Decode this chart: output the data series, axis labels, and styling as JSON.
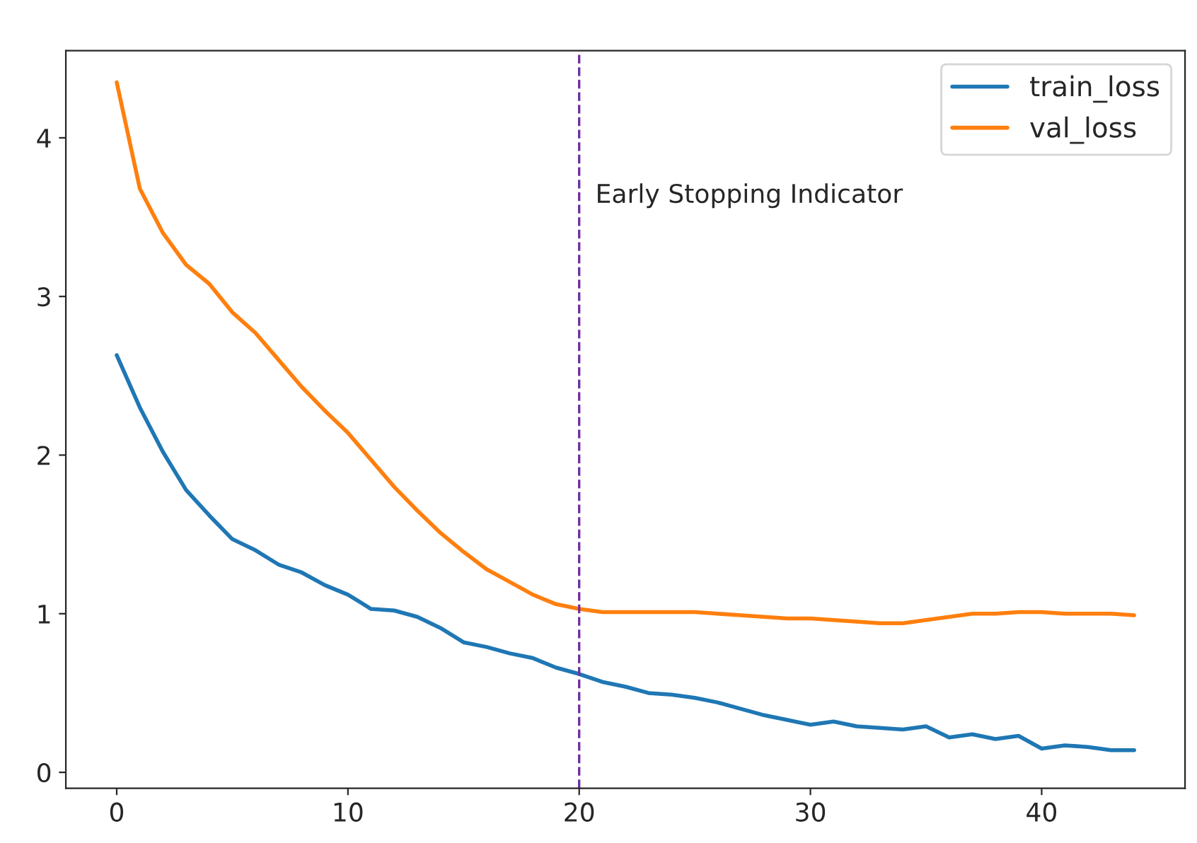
{
  "chart_data": {
    "type": "line",
    "x": [
      0,
      1,
      2,
      3,
      4,
      5,
      6,
      7,
      8,
      9,
      10,
      11,
      12,
      13,
      14,
      15,
      16,
      17,
      18,
      19,
      20,
      21,
      22,
      23,
      24,
      25,
      26,
      27,
      28,
      29,
      30,
      31,
      32,
      33,
      34,
      35,
      36,
      37,
      38,
      39,
      40,
      41,
      42,
      43,
      44
    ],
    "series": [
      {
        "name": "train_loss",
        "color": "#1f77b4",
        "values": [
          2.63,
          2.3,
          2.02,
          1.78,
          1.62,
          1.47,
          1.4,
          1.31,
          1.26,
          1.18,
          1.12,
          1.03,
          1.02,
          0.98,
          0.91,
          0.82,
          0.79,
          0.75,
          0.72,
          0.66,
          0.62,
          0.57,
          0.54,
          0.5,
          0.49,
          0.47,
          0.44,
          0.4,
          0.36,
          0.33,
          0.3,
          0.32,
          0.29,
          0.28,
          0.27,
          0.29,
          0.22,
          0.24,
          0.21,
          0.23,
          0.15,
          0.17,
          0.16,
          0.14,
          0.14
        ]
      },
      {
        "name": "val_loss",
        "color": "#ff7f0e",
        "values": [
          4.35,
          3.68,
          3.4,
          3.2,
          3.08,
          2.9,
          2.77,
          2.6,
          2.43,
          2.28,
          2.14,
          1.97,
          1.8,
          1.65,
          1.51,
          1.39,
          1.28,
          1.2,
          1.12,
          1.06,
          1.03,
          1.01,
          1.01,
          1.01,
          1.01,
          1.01,
          1.0,
          0.99,
          0.98,
          0.97,
          0.97,
          0.96,
          0.95,
          0.94,
          0.94,
          0.96,
          0.98,
          1.0,
          1.0,
          1.01,
          1.01,
          1.0,
          1.0,
          1.0,
          0.99
        ]
      }
    ],
    "xlim": [
      -2.2,
      46.2
    ],
    "ylim": [
      -0.1,
      4.55
    ],
    "xticks": [
      0,
      10,
      20,
      30,
      40
    ],
    "yticks": [
      0,
      1,
      2,
      3,
      4
    ],
    "ref_lines": [
      {
        "axis": "x",
        "value": 20,
        "label": "Early Stopping Indicator",
        "color": "#7030a0",
        "line_style": "dashed"
      }
    ],
    "legend": "top right",
    "grid": false,
    "line_style": "solid"
  }
}
